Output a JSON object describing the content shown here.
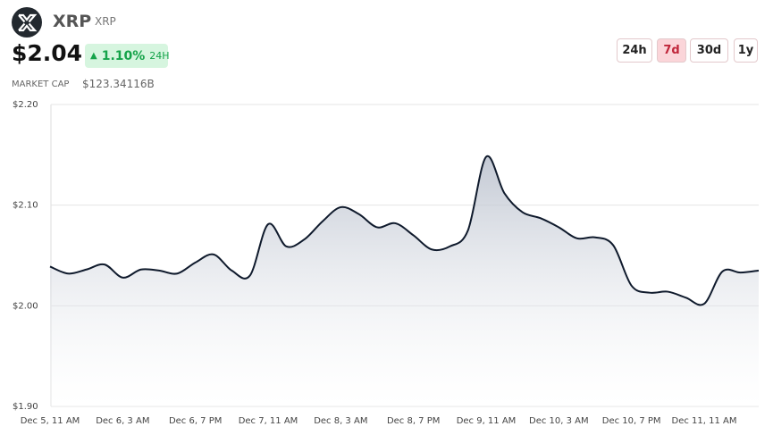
{
  "header": {
    "symbol": "XRP",
    "ticker": "XRP",
    "price": "$2.04",
    "change": "1.10%",
    "change_period": "24H",
    "market_cap_label": "MARKET CAP",
    "market_cap": "$123.34116B",
    "ranges": [
      "24h",
      "7d",
      "30d",
      "1y"
    ],
    "active_range": "7d"
  },
  "chart_data": {
    "type": "line",
    "color": "#0f1a2c",
    "categories": [
      "Dec 5, 11 AM",
      null,
      null,
      null,
      "Dec 6, 3 AM",
      null,
      null,
      null,
      "Dec 6, 7 PM",
      null,
      null,
      null,
      "Dec 7, 11 AM",
      null,
      null,
      null,
      "Dec 8, 3 AM",
      null,
      null,
      null,
      "Dec 8, 7 PM",
      null,
      null,
      null,
      "Dec 9, 11 AM",
      null,
      null,
      null,
      "Dec 10, 3 AM",
      null,
      null,
      null,
      "Dec 10, 7 PM",
      null,
      null,
      null,
      "Dec 11, 11 AM",
      null,
      null,
      null
    ],
    "values": [
      2.039,
      2.032,
      2.036,
      2.041,
      2.028,
      2.036,
      2.035,
      2.032,
      2.043,
      2.051,
      2.035,
      2.03,
      2.081,
      2.059,
      2.066,
      2.084,
      2.098,
      2.091,
      2.078,
      2.082,
      2.07,
      2.056,
      2.059,
      2.075,
      2.148,
      2.112,
      2.093,
      2.087,
      2.078,
      2.067,
      2.068,
      2.06,
      2.02,
      2.013,
      2.014,
      2.008,
      2.002,
      2.034,
      2.033,
      2.035
    ],
    "ylim": [
      1.9,
      2.2
    ],
    "yticks": [
      {
        "value": 1.9,
        "label": "$1.90"
      },
      {
        "value": 2.0,
        "label": "$2.00"
      },
      {
        "value": 2.1,
        "label": "$2.10"
      },
      {
        "value": 2.2,
        "label": "$2.20"
      }
    ],
    "grid": true
  }
}
